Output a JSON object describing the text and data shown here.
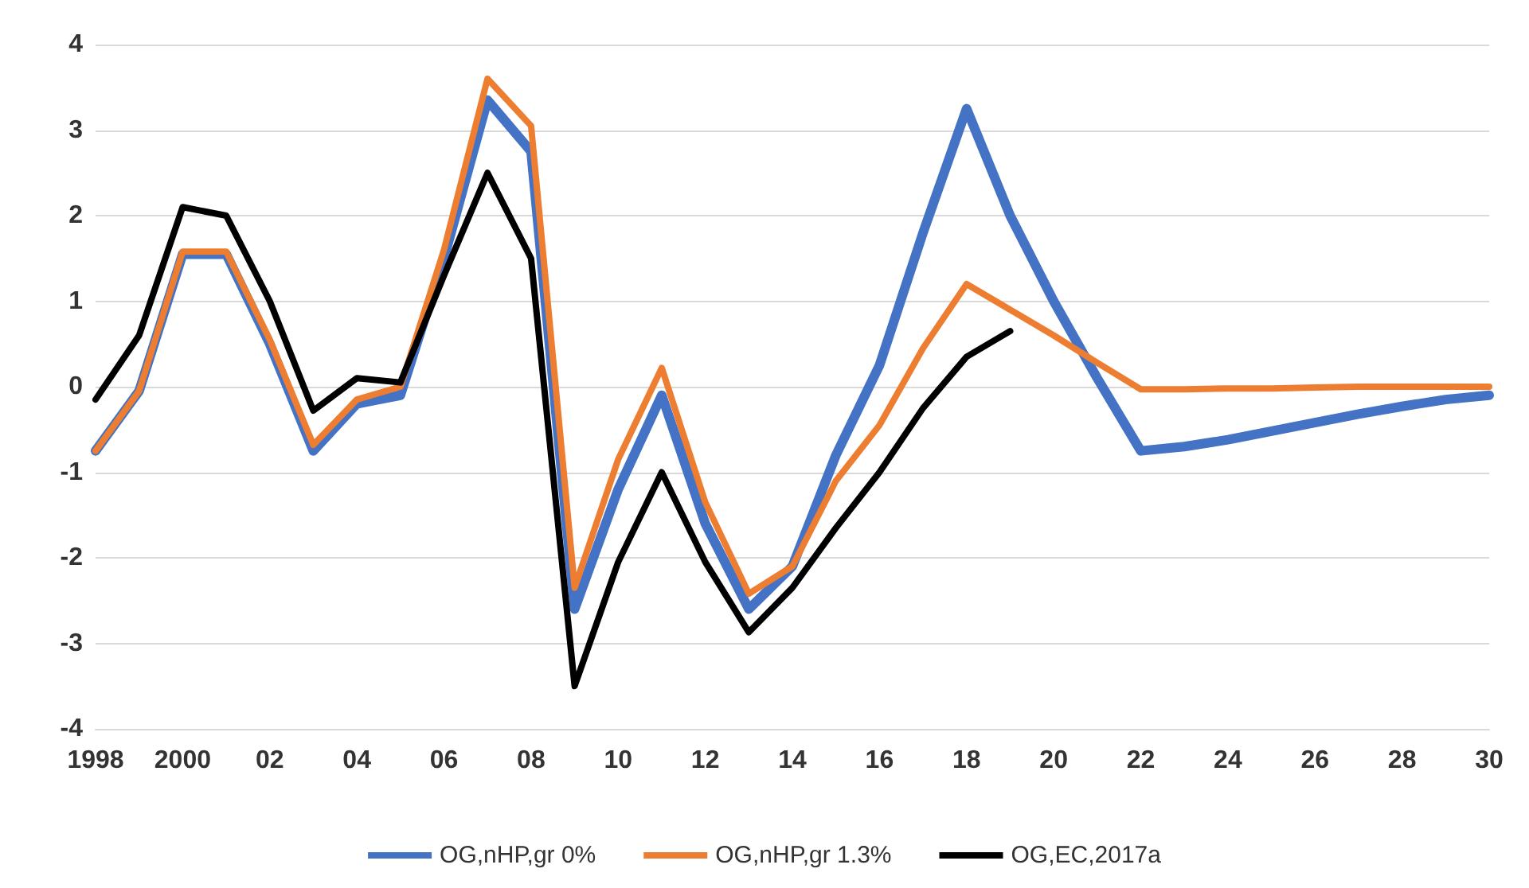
{
  "chart_data": {
    "type": "line",
    "categories": [
      "1998",
      null,
      "2000",
      null,
      "02",
      null,
      "04",
      null,
      "06",
      null,
      "08",
      null,
      "10",
      null,
      "12",
      null,
      "14",
      null,
      "16",
      null,
      "18",
      null,
      "20",
      null,
      "22",
      null,
      "24",
      null,
      "26",
      null,
      "28",
      null,
      "30"
    ],
    "series": [
      {
        "name": "OG,nHP,gr 0%",
        "color": "#4472c4",
        "values": [
          -0.75,
          -0.05,
          1.55,
          1.55,
          0.5,
          -0.75,
          -0.2,
          -0.1,
          1.5,
          3.35,
          2.75,
          -2.6,
          -1.2,
          -0.1,
          -1.6,
          -2.6,
          -2.1,
          -0.8,
          0.25,
          1.8,
          3.25,
          2.0,
          1.0,
          0.1,
          -0.75,
          -0.7,
          -0.62,
          -0.52,
          -0.42,
          -0.32,
          -0.23,
          -0.15,
          -0.1
        ]
      },
      {
        "name": "OG,nHP,gr 1.3%",
        "color": "#ed7d31",
        "values": [
          -0.75,
          -0.05,
          1.58,
          1.58,
          0.55,
          -0.68,
          -0.15,
          0.0,
          1.6,
          3.6,
          3.05,
          -2.35,
          -0.85,
          0.22,
          -1.35,
          -2.42,
          -2.1,
          -1.1,
          -0.45,
          0.45,
          1.2,
          0.9,
          0.6,
          0.28,
          -0.03,
          -0.03,
          -0.02,
          -0.02,
          -0.01,
          0.0,
          0.0,
          0.0,
          0.0
        ]
      },
      {
        "name": "OG,EC,2017a",
        "color": "#000000",
        "values": [
          -0.15,
          0.6,
          2.1,
          2.0,
          1.0,
          -0.28,
          0.1,
          0.05,
          1.3,
          2.5,
          1.5,
          -3.5,
          -2.05,
          -1.0,
          -2.05,
          -2.87,
          -2.35,
          -1.65,
          -1.0,
          -0.25,
          0.35,
          0.65,
          null,
          null,
          null,
          null,
          null,
          null,
          null,
          null,
          null,
          null,
          null
        ]
      }
    ],
    "ylim": [
      -4,
      4
    ],
    "yticks": [
      -4,
      -3,
      -2,
      -1,
      0,
      1,
      2,
      3,
      4
    ],
    "grid": "y",
    "legend": "bottom",
    "marker": "none",
    "line_style": "solid"
  }
}
